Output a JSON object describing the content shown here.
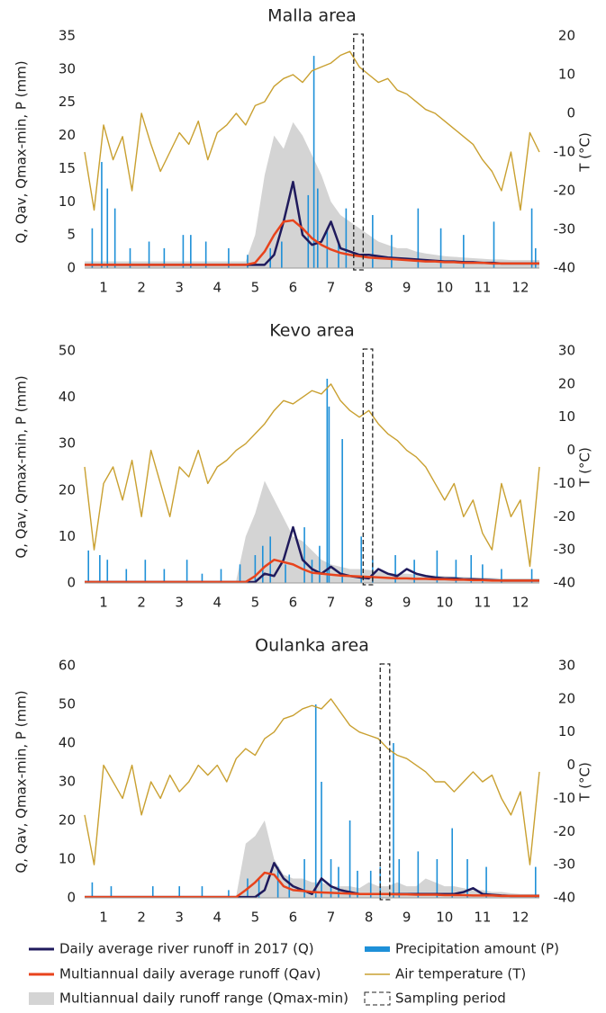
{
  "chart_data": [
    {
      "type": "line",
      "title": "Malla area",
      "ylabel": "Q, Qav, Qmax-min, P (mm)",
      "y2label": "T (°C)",
      "xlim": [
        0.5,
        12.5
      ],
      "xticks": [
        1,
        2,
        3,
        4,
        5,
        6,
        7,
        8,
        9,
        10,
        11,
        12
      ],
      "ylim": [
        0,
        35
      ],
      "yticks": [
        0,
        5,
        10,
        15,
        20,
        25,
        30,
        35
      ],
      "y2lim": [
        -40,
        20
      ],
      "y2ticks": [
        -40,
        -30,
        -20,
        -10,
        0,
        10,
        20
      ],
      "x": [
        0.5,
        0.75,
        1,
        1.25,
        1.5,
        1.75,
        2,
        2.25,
        2.5,
        2.75,
        3,
        3.25,
        3.5,
        3.75,
        4,
        4.25,
        4.5,
        4.75,
        5,
        5.25,
        5.5,
        5.75,
        6,
        6.25,
        6.5,
        6.75,
        7,
        7.25,
        7.5,
        7.75,
        8,
        8.25,
        8.5,
        8.75,
        9,
        9.25,
        9.5,
        9.75,
        10,
        10.25,
        10.5,
        10.75,
        11,
        11.25,
        11.5,
        11.75,
        12,
        12.25,
        12.5
      ],
      "sampling_period": [
        7.6,
        7.85
      ],
      "sampling_label": "Sampling period",
      "series": [
        {
          "name": "Daily average river runoff in 2017 (Q)",
          "kind": "line",
          "color": "#1f1a5c",
          "values": [
            0.5,
            0.5,
            0.5,
            0.5,
            0.5,
            0.5,
            0.5,
            0.5,
            0.5,
            0.5,
            0.5,
            0.5,
            0.5,
            0.5,
            0.5,
            0.5,
            0.5,
            0.5,
            0.5,
            0.5,
            2,
            7,
            13,
            5,
            3.5,
            4,
            7,
            3,
            2.5,
            2,
            2,
            1.8,
            1.6,
            1.5,
            1.4,
            1.3,
            1.2,
            1.1,
            1,
            1,
            0.9,
            0.9,
            0.8,
            0.8,
            0.7,
            0.7,
            0.7,
            0.7,
            0.7
          ]
        },
        {
          "name": "Multiannual daily average runoff (Qav)",
          "kind": "line",
          "color": "#e8431c",
          "values": [
            0.5,
            0.5,
            0.5,
            0.5,
            0.5,
            0.5,
            0.5,
            0.5,
            0.5,
            0.5,
            0.5,
            0.5,
            0.5,
            0.5,
            0.5,
            0.5,
            0.5,
            0.5,
            0.8,
            2.5,
            5,
            7,
            7.2,
            6,
            4.5,
            3.5,
            2.8,
            2.3,
            2,
            1.8,
            1.6,
            1.5,
            1.4,
            1.3,
            1.2,
            1.1,
            1,
            1,
            0.9,
            0.9,
            0.8,
            0.8,
            0.8,
            0.7,
            0.7,
            0.7,
            0.7,
            0.7,
            0.7
          ]
        },
        {
          "name": "Multiannual daily runoff range (Qmax-min)",
          "kind": "area",
          "color": "#d4d4d4",
          "values": [
            1,
            1,
            1,
            1,
            1,
            1,
            1,
            1,
            1,
            1,
            1,
            1,
            1,
            1,
            1,
            1,
            1,
            1,
            5,
            14,
            20,
            18,
            22,
            20,
            17,
            14,
            10,
            8,
            7,
            6,
            5,
            4,
            3.5,
            3,
            3,
            2.5,
            2.2,
            2,
            1.8,
            1.7,
            1.6,
            1.5,
            1.4,
            1.3,
            1.3,
            1.2,
            1.2,
            1.2,
            1.2
          ]
        },
        {
          "name": "Precipitation amount (P)",
          "kind": "bar",
          "color": "#1e90d8",
          "x": [
            0.7,
            0.95,
            1.1,
            1.3,
            1.7,
            2.2,
            2.6,
            3.1,
            3.3,
            3.7,
            4.3,
            4.8,
            5.4,
            5.7,
            6.4,
            6.55,
            6.65,
            6.9,
            7.2,
            7.4,
            8.1,
            8.6,
            9.3,
            9.9,
            10.5,
            11.3,
            12.3,
            12.4
          ],
          "values": [
            6,
            16,
            12,
            9,
            3,
            4,
            3,
            5,
            5,
            4,
            3,
            2,
            3,
            4,
            11,
            32,
            12,
            6,
            4,
            9,
            8,
            5,
            9,
            6,
            5,
            7,
            9,
            3
          ]
        },
        {
          "name": "Air temperature (T)",
          "kind": "line",
          "axis": "y2",
          "color": "#c9a030",
          "values": [
            -10,
            -25,
            -3,
            -12,
            -6,
            -20,
            0,
            -8,
            -15,
            -10,
            -5,
            -8,
            -2,
            -12,
            -5,
            -3,
            0,
            -3,
            2,
            3,
            7,
            9,
            10,
            8,
            11,
            12,
            13,
            15,
            16,
            12,
            10,
            8,
            9,
            6,
            5,
            3,
            1,
            0,
            -2,
            -4,
            -6,
            -8,
            -12,
            -15,
            -20,
            -10,
            -25,
            -5,
            -10
          ]
        }
      ]
    },
    {
      "type": "line",
      "title": "Kevo area",
      "ylabel": "Q, Qav, Qmax-min, P (mm)",
      "y2label": "T (°C)",
      "xlim": [
        0.5,
        12.5
      ],
      "xticks": [
        1,
        2,
        3,
        4,
        5,
        6,
        7,
        8,
        9,
        10,
        11,
        12
      ],
      "ylim": [
        0,
        50
      ],
      "yticks": [
        0,
        10,
        20,
        30,
        40,
        50
      ],
      "y2lim": [
        -40,
        30
      ],
      "y2ticks": [
        -40,
        -30,
        -20,
        -10,
        0,
        10,
        20,
        30
      ],
      "x": [
        0.5,
        0.75,
        1,
        1.25,
        1.5,
        1.75,
        2,
        2.25,
        2.5,
        2.75,
        3,
        3.25,
        3.5,
        3.75,
        4,
        4.25,
        4.5,
        4.75,
        5,
        5.25,
        5.5,
        5.75,
        6,
        6.25,
        6.5,
        6.75,
        7,
        7.25,
        7.5,
        7.75,
        8,
        8.25,
        8.5,
        8.75,
        9,
        9.25,
        9.5,
        9.75,
        10,
        10.25,
        10.5,
        10.75,
        11,
        11.25,
        11.5,
        11.75,
        12,
        12.25,
        12.5
      ],
      "sampling_period": [
        7.85,
        8.1
      ],
      "series": [
        {
          "kind": "line",
          "color": "#1f1a5c",
          "values": [
            0.2,
            0.2,
            0.2,
            0.2,
            0.2,
            0.2,
            0.2,
            0.2,
            0.2,
            0.2,
            0.2,
            0.2,
            0.2,
            0.2,
            0.2,
            0.2,
            0.2,
            0.2,
            0.2,
            2,
            1.5,
            5,
            12,
            5,
            3,
            2,
            3.5,
            2,
            1.5,
            1.2,
            1,
            3,
            2,
            1.5,
            3,
            2,
            1.5,
            1.2,
            1,
            1,
            0.8,
            0.8,
            0.7,
            0.6,
            0.5,
            0.5,
            0.5,
            0.5,
            0.5
          ]
        },
        {
          "kind": "line",
          "color": "#e8431c",
          "values": [
            0.2,
            0.2,
            0.2,
            0.2,
            0.2,
            0.2,
            0.2,
            0.2,
            0.2,
            0.2,
            0.2,
            0.2,
            0.2,
            0.2,
            0.2,
            0.2,
            0.2,
            0.2,
            1.5,
            3.5,
            5,
            4.5,
            4,
            3,
            2.2,
            2,
            1.8,
            1.6,
            1.5,
            1.4,
            1.3,
            1.2,
            1.1,
            1,
            1,
            0.9,
            0.9,
            0.8,
            0.8,
            0.7,
            0.7,
            0.6,
            0.6,
            0.5,
            0.5,
            0.5,
            0.5,
            0.5,
            0.5
          ]
        },
        {
          "kind": "area",
          "color": "#d4d4d4",
          "values": [
            0.5,
            0.5,
            0.5,
            0.5,
            0.5,
            0.5,
            0.5,
            0.5,
            0.5,
            0.5,
            0.5,
            0.5,
            0.5,
            0.5,
            0.5,
            0.5,
            0.5,
            10,
            15,
            22,
            18,
            14,
            10,
            9,
            7,
            5,
            4,
            3.5,
            3,
            3,
            2.8,
            2.5,
            2.2,
            2,
            2,
            1.8,
            1.7,
            1.6,
            1.5,
            1.4,
            1.3,
            1.2,
            1.2,
            1.1,
            1,
            1,
            1,
            1,
            1
          ]
        },
        {
          "kind": "bar",
          "color": "#1e90d8",
          "x": [
            0.6,
            0.9,
            1.1,
            1.6,
            2.1,
            2.6,
            3.2,
            3.6,
            4.1,
            4.6,
            5,
            5.2,
            5.4,
            5.8,
            6.3,
            6.5,
            6.7,
            6.9,
            6.95,
            7.3,
            7.8,
            8.1,
            8.7,
            9.2,
            9.8,
            10.3,
            10.7,
            11,
            11.5,
            12.3
          ],
          "values": [
            7,
            6,
            5,
            3,
            5,
            3,
            5,
            2,
            3,
            4,
            6,
            8,
            10,
            4,
            12,
            5,
            8,
            44,
            38,
            31,
            10,
            5,
            6,
            5,
            7,
            5,
            6,
            4,
            3,
            3
          ]
        },
        {
          "kind": "line",
          "axis": "y2",
          "color": "#c9a030",
          "values": [
            -5,
            -30,
            -10,
            -5,
            -15,
            -3,
            -20,
            0,
            -10,
            -20,
            -5,
            -8,
            0,
            -10,
            -5,
            -3,
            0,
            2,
            5,
            8,
            12,
            15,
            14,
            16,
            18,
            17,
            20,
            15,
            12,
            10,
            12,
            8,
            5,
            3,
            0,
            -2,
            -5,
            -10,
            -15,
            -10,
            -20,
            -15,
            -25,
            -30,
            -10,
            -20,
            -15,
            -35,
            -5
          ]
        }
      ]
    },
    {
      "type": "line",
      "title": "Oulanka area",
      "ylabel": "Q, Qav, Qmax-min, P (mm)",
      "y2label": "T (°C)",
      "xlim": [
        0.5,
        12.5
      ],
      "xticks": [
        1,
        2,
        3,
        4,
        5,
        6,
        7,
        8,
        9,
        10,
        11,
        12
      ],
      "ylim": [
        0,
        60
      ],
      "yticks": [
        0,
        10,
        20,
        30,
        40,
        50,
        60
      ],
      "y2lim": [
        -40,
        30
      ],
      "y2ticks": [
        -40,
        -30,
        -20,
        -10,
        0,
        10,
        20,
        30
      ],
      "x": [
        0.5,
        0.75,
        1,
        1.25,
        1.5,
        1.75,
        2,
        2.25,
        2.5,
        2.75,
        3,
        3.25,
        3.5,
        3.75,
        4,
        4.25,
        4.5,
        4.75,
        5,
        5.25,
        5.5,
        5.75,
        6,
        6.25,
        6.5,
        6.75,
        7,
        7.25,
        7.5,
        7.75,
        8,
        8.25,
        8.5,
        8.75,
        9,
        9.25,
        9.5,
        9.75,
        10,
        10.25,
        10.5,
        10.75,
        11,
        11.25,
        11.5,
        11.75,
        12,
        12.25,
        12.5
      ],
      "sampling_period": [
        8.3,
        8.55
      ],
      "series": [
        {
          "kind": "line",
          "color": "#1f1a5c",
          "values": [
            0.2,
            0.2,
            0.2,
            0.2,
            0.2,
            0.2,
            0.2,
            0.2,
            0.2,
            0.2,
            0.2,
            0.2,
            0.2,
            0.2,
            0.2,
            0.2,
            0.2,
            0.2,
            0.2,
            2,
            9,
            5,
            3,
            2,
            1,
            5,
            3,
            2,
            1.5,
            1,
            1,
            1,
            1,
            1,
            1,
            1,
            1,
            1,
            1,
            1,
            1.5,
            2.5,
            1,
            0.8,
            0.6,
            0.5,
            0.5,
            0.5,
            0.5
          ]
        },
        {
          "kind": "line",
          "color": "#e8431c",
          "values": [
            0.2,
            0.2,
            0.2,
            0.2,
            0.2,
            0.2,
            0.2,
            0.2,
            0.2,
            0.2,
            0.2,
            0.2,
            0.2,
            0.2,
            0.2,
            0.2,
            0.2,
            2,
            4,
            6.5,
            6,
            3,
            2,
            1.8,
            1.5,
            1.4,
            1.3,
            1.2,
            1.1,
            1,
            1,
            1,
            1,
            0.9,
            0.9,
            0.8,
            0.8,
            0.8,
            0.7,
            0.7,
            0.7,
            0.6,
            0.6,
            0.6,
            0.5,
            0.5,
            0.5,
            0.5,
            0.5
          ]
        },
        {
          "kind": "area",
          "color": "#d4d4d4",
          "values": [
            0.5,
            0.5,
            0.5,
            0.5,
            0.5,
            0.5,
            0.5,
            0.5,
            0.5,
            0.5,
            0.5,
            0.5,
            0.5,
            0.5,
            0.5,
            0.5,
            0.5,
            14,
            16,
            20,
            10,
            6,
            5,
            5,
            4,
            4,
            3,
            3,
            3,
            2.5,
            4,
            3,
            3,
            4,
            3,
            3,
            5,
            4,
            3,
            3,
            2.5,
            2,
            2,
            1.5,
            1.5,
            1.2,
            1,
            1,
            1
          ]
        },
        {
          "kind": "bar",
          "color": "#1e90d8",
          "x": [
            0.7,
            1.2,
            2.3,
            3,
            3.6,
            4.3,
            4.8,
            5.1,
            5.6,
            5.9,
            6.3,
            6.6,
            6.75,
            7,
            7.2,
            7.5,
            7.7,
            8.05,
            8.3,
            8.65,
            8.8,
            9.3,
            9.8,
            10.2,
            10.6,
            11.1,
            12.4
          ],
          "values": [
            4,
            3,
            3,
            3,
            3,
            2,
            5,
            5,
            8,
            6,
            10,
            50,
            30,
            10,
            8,
            20,
            7,
            7,
            8,
            40,
            10,
            12,
            10,
            18,
            10,
            8,
            8
          ]
        },
        {
          "kind": "line",
          "axis": "y2",
          "color": "#c9a030",
          "values": [
            -15,
            -30,
            0,
            -5,
            -10,
            0,
            -15,
            -5,
            -10,
            -3,
            -8,
            -5,
            0,
            -3,
            0,
            -5,
            2,
            5,
            3,
            8,
            10,
            14,
            15,
            17,
            18,
            17,
            20,
            16,
            12,
            10,
            9,
            8,
            5,
            3,
            2,
            0,
            -2,
            -5,
            -5,
            -8,
            -5,
            -2,
            -5,
            -3,
            -10,
            -15,
            -8,
            -30,
            -2
          ]
        }
      ]
    }
  ]
}
